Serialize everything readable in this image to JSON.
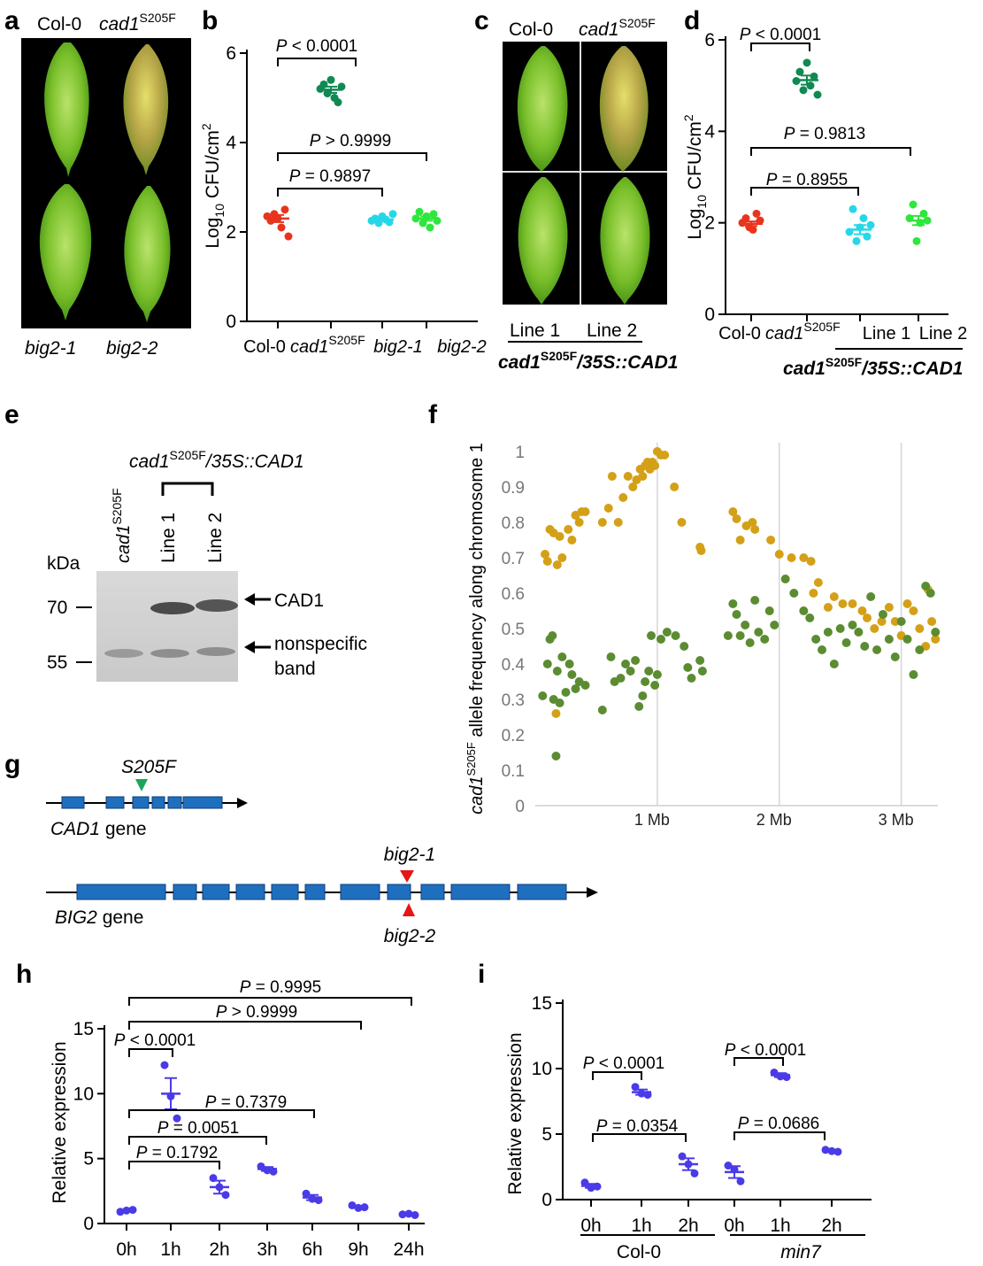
{
  "panel_letters": {
    "a": "a",
    "b": "b",
    "c": "c",
    "d": "d",
    "e": "e",
    "f": "f",
    "g": "g",
    "h": "h",
    "i": "i"
  },
  "panel_a": {
    "top_labels": [
      "Col-0",
      "cad1",
      "S205F"
    ],
    "bottom_labels": [
      "big2-1",
      "big2-2"
    ]
  },
  "panel_b": {
    "ylabel_main": "Log",
    "ylabel_sub": "10",
    "ylabel_rest": " CFU/cm",
    "ylabel_sup": "2",
    "p_labels": [
      "P < 0.0001",
      "P > 0.9999",
      "P = 0.9897"
    ],
    "xticks": [
      "Col-0",
      "cad1",
      "S205F",
      "big2-1",
      "big2-2"
    ]
  },
  "panel_c": {
    "top_labels": [
      "Col-0",
      "cad1",
      "S205F"
    ],
    "line_labels": [
      "Line 1",
      "Line 2"
    ],
    "genotype": [
      "cad1",
      "S205F",
      "/35S::CAD1"
    ]
  },
  "panel_d": {
    "p_labels": [
      "P < 0.0001",
      "P = 0.9813",
      "P = 0.8955"
    ],
    "xticks": [
      "Col-0",
      "cad1",
      "S205F",
      "Line 1",
      "Line 2"
    ],
    "genotype": [
      "cad1",
      "S205F",
      "/35S::CAD1"
    ]
  },
  "panel_e": {
    "header": [
      "cad1",
      "S205F",
      "/35S::CAD1"
    ],
    "lanes": [
      "cad1",
      "S205F",
      "Line 1",
      "Line 2"
    ],
    "kda": "kDa",
    "markers": [
      "70",
      "55"
    ],
    "band_labels": [
      "CAD1",
      "nonspecific",
      "band"
    ]
  },
  "panel_g": {
    "mutation": "S205F",
    "cad1_gene": [
      "CAD1",
      " gene"
    ],
    "big2_gene": [
      "BIG2",
      " gene"
    ],
    "alleles": [
      "big2-1",
      "big2-2"
    ]
  },
  "panel_h": {
    "p_labels": [
      "P = 0.9995",
      "P > 0.9999",
      "P < 0.0001",
      "P = 0.7379",
      "P = 0.0051",
      "P = 0.1792"
    ]
  },
  "panel_i": {
    "p_labels": [
      "P < 0.0001",
      "P = 0.0354",
      "P < 0.0001",
      "P = 0.0686"
    ],
    "groups": [
      "Col-0",
      "min7"
    ]
  },
  "colors": {
    "col0": "#e8341c",
    "cad1": "#0f8a52",
    "big21": "#26d7e8",
    "big22": "#2ee63c",
    "expr": "#4a3be8",
    "allele_yellow": "#d4a017",
    "allele_green": "#5b8c32",
    "exon": "#1f6fbf",
    "leaf_bg": "#000000"
  },
  "chart_data": [
    {
      "panel": "b",
      "type": "scatter",
      "ylabel": "Log10 CFU/cm2",
      "ylim": [
        0,
        6
      ],
      "yticks": [
        0,
        2,
        4,
        6
      ],
      "categories": [
        "Col-0",
        "cad1S205F",
        "big2-1",
        "big2-2"
      ],
      "series": [
        {
          "points": [
            2.35,
            2.25,
            2.4,
            2.3,
            2.1,
            2.5,
            1.9
          ],
          "mean": 2.3,
          "sem": 0.08
        },
        {
          "points": [
            5.2,
            5.3,
            5.1,
            5.4,
            5.0,
            4.9,
            5.25
          ],
          "mean": 5.18,
          "sem": 0.07
        },
        {
          "points": [
            2.25,
            2.3,
            2.2,
            2.35,
            2.28,
            2.22,
            2.4
          ],
          "mean": 2.28,
          "sem": 0.03
        },
        {
          "points": [
            2.3,
            2.45,
            2.2,
            2.35,
            2.1,
            2.4,
            2.25
          ],
          "mean": 2.3,
          "sem": 0.05
        }
      ]
    },
    {
      "panel": "d",
      "type": "scatter",
      "ylabel": "Log10 CFU/cm2",
      "ylim": [
        0,
        6
      ],
      "yticks": [
        0,
        2,
        4,
        6
      ],
      "categories": [
        "Col-0",
        "cad1S205F",
        "Line 1",
        "Line 2"
      ],
      "series": [
        {
          "points": [
            2.0,
            2.1,
            1.9,
            1.85,
            2.2,
            2.05
          ],
          "mean": 1.98,
          "sem": 0.05
        },
        {
          "points": [
            5.1,
            5.3,
            4.9,
            5.5,
            5.0,
            5.2,
            4.8
          ],
          "mean": 5.12,
          "sem": 0.1
        },
        {
          "points": [
            1.8,
            2.3,
            1.6,
            1.9,
            2.1,
            1.7,
            1.95
          ],
          "mean": 1.85,
          "sem": 0.1
        },
        {
          "points": [
            2.1,
            2.4,
            1.6,
            2.0,
            2.2,
            2.05
          ],
          "mean": 2.05,
          "sem": 0.1
        }
      ]
    },
    {
      "panel": "f",
      "type": "scatter",
      "ylabel": "cad1S205F allele frequency along chromosome 1",
      "ylim": [
        0,
        1
      ],
      "yticks": [
        "0",
        "0.1",
        "0.2",
        "0.3",
        "0.4",
        "0.5",
        "0.6",
        "0.7",
        "0.8",
        "0.9",
        "1"
      ],
      "xticks": [
        "1 Mb",
        "2 Mb",
        "3 Mb"
      ],
      "xlim": [
        0,
        3.3
      ],
      "series": [
        {
          "color": "yellow",
          "points": [
            [
              0.08,
              0.71
            ],
            [
              0.1,
              0.69
            ],
            [
              0.12,
              0.78
            ],
            [
              0.15,
              0.77
            ],
            [
              0.17,
              0.26
            ],
            [
              0.18,
              0.68
            ],
            [
              0.2,
              0.76
            ],
            [
              0.22,
              0.7
            ],
            [
              0.27,
              0.78
            ],
            [
              0.3,
              0.75
            ],
            [
              0.33,
              0.82
            ],
            [
              0.36,
              0.8
            ],
            [
              0.38,
              0.83
            ],
            [
              0.41,
              0.83
            ],
            [
              0.55,
              0.8
            ],
            [
              0.6,
              0.84
            ],
            [
              0.63,
              0.93
            ],
            [
              0.68,
              0.8
            ],
            [
              0.72,
              0.87
            ],
            [
              0.76,
              0.93
            ],
            [
              0.8,
              0.9
            ],
            [
              0.83,
              0.92
            ],
            [
              0.86,
              0.95
            ],
            [
              0.88,
              0.93
            ],
            [
              0.9,
              0.96
            ],
            [
              0.92,
              0.97
            ],
            [
              0.94,
              0.95
            ],
            [
              0.96,
              0.97
            ],
            [
              0.98,
              0.96
            ],
            [
              1.0,
              1.0
            ],
            [
              1.03,
              0.99
            ],
            [
              1.06,
              0.99
            ],
            [
              1.14,
              0.9
            ],
            [
              1.2,
              0.8
            ],
            [
              1.35,
              0.73
            ],
            [
              1.36,
              0.72
            ],
            [
              1.62,
              0.83
            ],
            [
              1.65,
              0.81
            ],
            [
              1.68,
              0.75
            ],
            [
              1.73,
              0.79
            ],
            [
              1.78,
              0.8
            ],
            [
              1.8,
              0.78
            ],
            [
              1.93,
              0.75
            ],
            [
              2.0,
              0.71
            ],
            [
              2.1,
              0.7
            ],
            [
              2.2,
              0.7
            ],
            [
              2.26,
              0.69
            ],
            [
              2.28,
              0.6
            ],
            [
              2.32,
              0.63
            ],
            [
              2.4,
              0.56
            ],
            [
              2.45,
              0.59
            ],
            [
              2.52,
              0.57
            ],
            [
              2.6,
              0.57
            ],
            [
              2.68,
              0.55
            ],
            [
              2.72,
              0.53
            ],
            [
              2.78,
              0.5
            ],
            [
              2.84,
              0.52
            ],
            [
              2.9,
              0.56
            ],
            [
              2.95,
              0.52
            ],
            [
              3.0,
              0.48
            ],
            [
              3.05,
              0.57
            ],
            [
              3.1,
              0.55
            ],
            [
              3.15,
              0.5
            ],
            [
              3.2,
              0.45
            ],
            [
              3.22,
              0.61
            ],
            [
              3.25,
              0.52
            ],
            [
              3.28,
              0.47
            ]
          ]
        },
        {
          "color": "green",
          "points": [
            [
              0.06,
              0.31
            ],
            [
              0.1,
              0.4
            ],
            [
              0.12,
              0.47
            ],
            [
              0.14,
              0.48
            ],
            [
              0.15,
              0.3
            ],
            [
              0.17,
              0.14
            ],
            [
              0.18,
              0.38
            ],
            [
              0.2,
              0.29
            ],
            [
              0.22,
              0.42
            ],
            [
              0.25,
              0.32
            ],
            [
              0.28,
              0.4
            ],
            [
              0.3,
              0.37
            ],
            [
              0.33,
              0.33
            ],
            [
              0.36,
              0.35
            ],
            [
              0.41,
              0.34
            ],
            [
              0.55,
              0.27
            ],
            [
              0.62,
              0.42
            ],
            [
              0.65,
              0.35
            ],
            [
              0.7,
              0.36
            ],
            [
              0.74,
              0.4
            ],
            [
              0.78,
              0.38
            ],
            [
              0.82,
              0.41
            ],
            [
              0.85,
              0.28
            ],
            [
              0.88,
              0.31
            ],
            [
              0.9,
              0.35
            ],
            [
              0.93,
              0.38
            ],
            [
              0.95,
              0.48
            ],
            [
              0.98,
              0.34
            ],
            [
              1.0,
              0.37
            ],
            [
              1.03,
              0.47
            ],
            [
              1.08,
              0.49
            ],
            [
              1.15,
              0.48
            ],
            [
              1.22,
              0.45
            ],
            [
              1.25,
              0.39
            ],
            [
              1.28,
              0.36
            ],
            [
              1.35,
              0.41
            ],
            [
              1.37,
              0.38
            ],
            [
              1.58,
              0.48
            ],
            [
              1.62,
              0.57
            ],
            [
              1.65,
              0.54
            ],
            [
              1.68,
              0.48
            ],
            [
              1.72,
              0.51
            ],
            [
              1.76,
              0.46
            ],
            [
              1.8,
              0.58
            ],
            [
              1.83,
              0.49
            ],
            [
              1.88,
              0.47
            ],
            [
              1.92,
              0.55
            ],
            [
              1.96,
              0.51
            ],
            [
              2.05,
              0.64
            ],
            [
              2.12,
              0.6
            ],
            [
              2.2,
              0.55
            ],
            [
              2.25,
              0.53
            ],
            [
              2.3,
              0.47
            ],
            [
              2.35,
              0.44
            ],
            [
              2.4,
              0.49
            ],
            [
              2.45,
              0.4
            ],
            [
              2.5,
              0.5
            ],
            [
              2.55,
              0.46
            ],
            [
              2.6,
              0.51
            ],
            [
              2.65,
              0.49
            ],
            [
              2.7,
              0.45
            ],
            [
              2.75,
              0.59
            ],
            [
              2.8,
              0.44
            ],
            [
              2.85,
              0.54
            ],
            [
              2.9,
              0.47
            ],
            [
              2.95,
              0.42
            ],
            [
              3.0,
              0.52
            ],
            [
              3.05,
              0.47
            ],
            [
              3.1,
              0.37
            ],
            [
              3.15,
              0.44
            ],
            [
              3.2,
              0.62
            ],
            [
              3.24,
              0.6
            ],
            [
              3.28,
              0.49
            ]
          ]
        }
      ]
    },
    {
      "panel": "h",
      "type": "scatter",
      "ylabel": "Relative expression",
      "ylim": [
        0,
        15
      ],
      "yticks": [
        0,
        5,
        10,
        15
      ],
      "categories": [
        "0h",
        "1h",
        "2h",
        "3h",
        "6h",
        "9h",
        "24h"
      ],
      "series": [
        {
          "points": [
            0.9,
            1.0,
            1.05
          ],
          "mean": 1.0,
          "sem": 0.05
        },
        {
          "points": [
            12.2,
            9.8,
            8.1
          ],
          "mean": 10.0,
          "sem": 1.2
        },
        {
          "points": [
            3.5,
            2.8,
            2.2
          ],
          "mean": 2.8,
          "sem": 0.5
        },
        {
          "points": [
            4.4,
            4.1,
            4.0
          ],
          "mean": 4.2,
          "sem": 0.15
        },
        {
          "points": [
            2.3,
            1.9,
            1.8
          ],
          "mean": 2.0,
          "sem": 0.2
        },
        {
          "points": [
            1.4,
            1.2,
            1.25
          ],
          "mean": 1.28,
          "sem": 0.07
        },
        {
          "points": [
            0.7,
            0.75,
            0.65
          ],
          "mean": 0.7,
          "sem": 0.05
        }
      ]
    },
    {
      "panel": "i",
      "type": "scatter",
      "ylabel": "Relative expression",
      "ylim": [
        0,
        15
      ],
      "yticks": [
        0,
        5,
        10,
        15
      ],
      "categories": [
        "0h",
        "1h",
        "2h",
        "0h",
        "1h",
        "2h"
      ],
      "series": [
        {
          "points": [
            1.3,
            0.9,
            1.0
          ],
          "mean": 1.05,
          "sem": 0.15
        },
        {
          "points": [
            8.6,
            8.1,
            8.0
          ],
          "mean": 8.2,
          "sem": 0.2
        },
        {
          "points": [
            3.3,
            2.7,
            2.0
          ],
          "mean": 2.7,
          "sem": 0.45
        },
        {
          "points": [
            2.6,
            2.3,
            1.4
          ],
          "mean": 2.1,
          "sem": 0.45
        },
        {
          "points": [
            9.7,
            9.4,
            9.35
          ],
          "mean": 9.5,
          "sem": 0.15
        },
        {
          "points": [
            3.8,
            3.7,
            3.65
          ],
          "mean": 3.7,
          "sem": 0.05
        }
      ]
    }
  ]
}
